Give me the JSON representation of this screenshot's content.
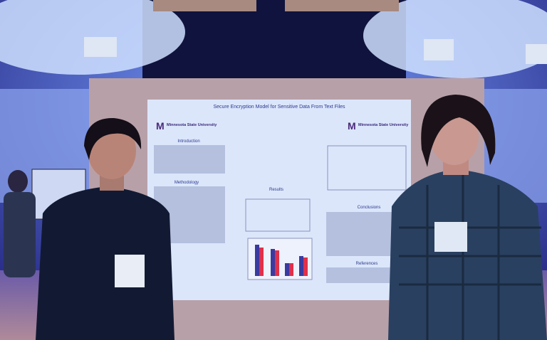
{
  "poster": {
    "title": "Secure Encryption Model for Sensitive Data From Text Files",
    "logos": [
      "Minnesota State University",
      "Minnesota State University"
    ],
    "sections": [
      "Introduction",
      "Methodology",
      "Results",
      "Conclusions",
      "References"
    ]
  }
}
